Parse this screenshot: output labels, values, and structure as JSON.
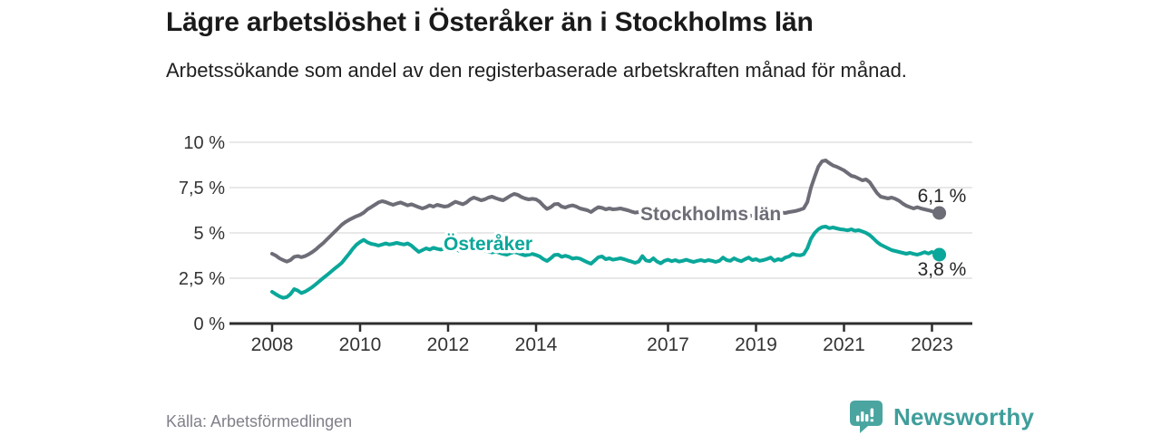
{
  "header": {
    "title": "Lägre arbetslöshet i Österåker än i Stockholms län",
    "subtitle": "Arbetssökande som andel av den registerbaserade arbetskraften månad för månad."
  },
  "footer": {
    "source": "Källa: Arbetsförmedlingen",
    "logo_text": "Newsworthy"
  },
  "colors": {
    "grid": "#e1e1e1",
    "axis": "#2e2e2e",
    "tick_label": "#333333",
    "end_label": "#262626",
    "logo_icon": "#4aa5a0",
    "logo_text": "#3f9e9b"
  },
  "chart_data": {
    "type": "line",
    "unit": "%",
    "frequency": "monthly",
    "x_start": "2008-01",
    "x_end": "2023-03",
    "ylim": [
      0,
      10
    ],
    "grid": true,
    "yticks": [
      {
        "value": 0,
        "label": "0 %"
      },
      {
        "value": 2.5,
        "label": "2,5 %"
      },
      {
        "value": 5,
        "label": "5 %"
      },
      {
        "value": 7.5,
        "label": "7,5 %"
      },
      {
        "value": 10,
        "label": "10 %"
      }
    ],
    "xticks": [
      {
        "year": 2008,
        "label": "2008"
      },
      {
        "year": 2010,
        "label": "2010"
      },
      {
        "year": 2012,
        "label": "2012"
      },
      {
        "year": 2014,
        "label": "2014"
      },
      {
        "year": 2017,
        "label": "2017"
      },
      {
        "year": 2019,
        "label": "2019"
      },
      {
        "year": 2021,
        "label": "2021"
      },
      {
        "year": 2023,
        "label": "2023"
      }
    ],
    "series": [
      {
        "id": "stockholm",
        "name": "Stockholms län",
        "color": "#6d6d77",
        "end_label": "6,1 %",
        "end_label_side": "above",
        "inline_label": {
          "x": 706,
          "y": 243
        },
        "values": [
          3.85,
          3.75,
          3.6,
          3.5,
          3.42,
          3.5,
          3.68,
          3.72,
          3.66,
          3.72,
          3.82,
          3.95,
          4.1,
          4.28,
          4.45,
          4.65,
          4.85,
          5.05,
          5.25,
          5.45,
          5.6,
          5.72,
          5.82,
          5.92,
          6.0,
          6.12,
          6.3,
          6.42,
          6.55,
          6.68,
          6.75,
          6.7,
          6.62,
          6.55,
          6.62,
          6.68,
          6.6,
          6.52,
          6.58,
          6.5,
          6.42,
          6.35,
          6.42,
          6.52,
          6.45,
          6.55,
          6.5,
          6.45,
          6.48,
          6.6,
          6.72,
          6.65,
          6.58,
          6.68,
          6.85,
          6.95,
          6.88,
          6.8,
          6.85,
          6.95,
          7.0,
          6.92,
          6.85,
          6.8,
          6.92,
          7.05,
          7.15,
          7.1,
          6.98,
          6.9,
          6.85,
          6.88,
          6.85,
          6.72,
          6.5,
          6.32,
          6.42,
          6.58,
          6.6,
          6.45,
          6.4,
          6.48,
          6.52,
          6.45,
          6.35,
          6.3,
          6.25,
          6.15,
          6.3,
          6.42,
          6.38,
          6.3,
          6.35,
          6.3,
          6.32,
          6.35,
          6.3,
          6.25,
          6.18,
          6.12,
          6.15,
          6.1,
          6.08,
          6.12,
          6.1,
          6.05,
          6.08,
          6.1,
          6.08,
          6.05,
          6.02,
          6.05,
          6.0,
          6.02,
          6.05,
          6.0,
          5.98,
          6.0,
          6.02,
          6.0,
          5.98,
          5.95,
          5.92,
          5.9,
          5.88,
          5.9,
          5.92,
          5.9,
          5.88,
          5.9,
          5.92,
          5.95,
          6.0,
          6.02,
          6.05,
          6.08,
          6.1,
          6.12,
          6.15,
          6.12,
          6.1,
          6.15,
          6.18,
          6.22,
          6.28,
          6.35,
          6.7,
          7.5,
          8.1,
          8.65,
          8.95,
          9.0,
          8.85,
          8.72,
          8.65,
          8.55,
          8.45,
          8.3,
          8.15,
          8.1,
          8.0,
          7.9,
          7.95,
          7.8,
          7.5,
          7.2,
          7.0,
          6.95,
          6.9,
          6.95,
          6.88,
          6.78,
          6.62,
          6.5,
          6.42,
          6.35,
          6.42,
          6.35,
          6.3,
          6.25,
          6.2,
          6.1,
          6.1
        ]
      },
      {
        "id": "osteraker",
        "name": "Österåker",
        "color": "#0aa79a",
        "end_label": "3,8 %",
        "end_label_side": "below",
        "inline_label": {
          "x": 489,
          "y": 276
        },
        "values": [
          1.75,
          1.62,
          1.5,
          1.42,
          1.46,
          1.62,
          1.9,
          1.82,
          1.68,
          1.76,
          1.88,
          2.02,
          2.18,
          2.35,
          2.52,
          2.68,
          2.85,
          3.02,
          3.18,
          3.35,
          3.6,
          3.85,
          4.12,
          4.35,
          4.5,
          4.62,
          4.48,
          4.4,
          4.36,
          4.3,
          4.36,
          4.42,
          4.36,
          4.4,
          4.45,
          4.4,
          4.36,
          4.42,
          4.3,
          4.12,
          3.95,
          4.05,
          4.15,
          4.08,
          4.18,
          4.12,
          4.08,
          4.14,
          4.1,
          4.18,
          4.1,
          4.02,
          4.08,
          4.14,
          4.05,
          3.98,
          4.05,
          4.1,
          4.02,
          3.96,
          3.92,
          3.98,
          3.9,
          3.84,
          3.8,
          3.88,
          3.95,
          3.9,
          3.82,
          3.76,
          3.8,
          3.84,
          3.78,
          3.7,
          3.55,
          3.45,
          3.6,
          3.78,
          3.8,
          3.68,
          3.74,
          3.68,
          3.58,
          3.62,
          3.58,
          3.48,
          3.38,
          3.3,
          3.48,
          3.66,
          3.7,
          3.55,
          3.6,
          3.52,
          3.56,
          3.6,
          3.55,
          3.48,
          3.42,
          3.35,
          3.42,
          3.72,
          3.48,
          3.44,
          3.6,
          3.42,
          3.32,
          3.46,
          3.52,
          3.44,
          3.5,
          3.42,
          3.46,
          3.52,
          3.45,
          3.4,
          3.46,
          3.5,
          3.44,
          3.5,
          3.46,
          3.4,
          3.46,
          3.64,
          3.5,
          3.46,
          3.6,
          3.5,
          3.44,
          3.55,
          3.64,
          3.5,
          3.55,
          3.46,
          3.5,
          3.56,
          3.64,
          3.46,
          3.55,
          3.5,
          3.64,
          3.7,
          3.84,
          3.78,
          3.76,
          3.82,
          4.15,
          4.68,
          5.0,
          5.2,
          5.32,
          5.35,
          5.26,
          5.3,
          5.25,
          5.2,
          5.18,
          5.14,
          5.2,
          5.12,
          5.15,
          5.08,
          5.0,
          4.88,
          4.7,
          4.5,
          4.35,
          4.25,
          4.15,
          4.05,
          4.0,
          3.95,
          3.9,
          3.85,
          3.9,
          3.84,
          3.8,
          3.86,
          3.94,
          3.86,
          3.95,
          3.85,
          3.8
        ]
      }
    ]
  }
}
